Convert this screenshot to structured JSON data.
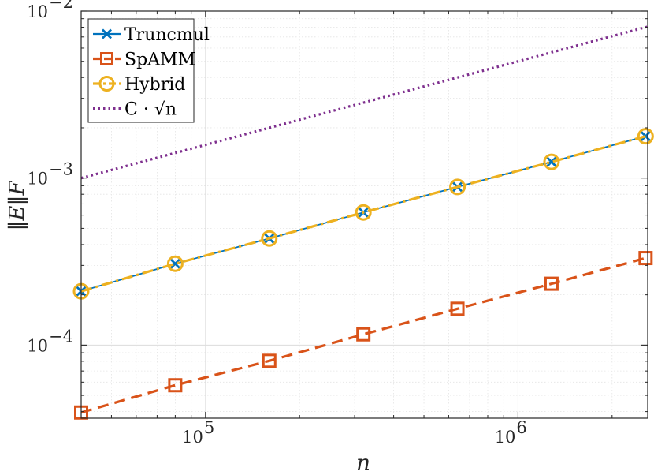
{
  "chart_data": {
    "type": "line",
    "xscale": "log",
    "yscale": "log",
    "xlim": [
      40000,
      2600000
    ],
    "ylim": [
      3.651e-05,
      0.01
    ],
    "grid": true,
    "xlabel": "n",
    "ylabel": "‖E‖F",
    "legend_position": "top-left",
    "x_ticks": [
      {
        "value": 100000,
        "base": "10",
        "exp": "5"
      },
      {
        "value": 1000000,
        "base": "10",
        "exp": "6"
      }
    ],
    "y_ticks": [
      {
        "value": 0.0001,
        "base": "10",
        "exp": "−4"
      },
      {
        "value": 0.001,
        "base": "10",
        "exp": "−3"
      },
      {
        "value": 0.01,
        "base": "10",
        "exp": "−2"
      }
    ],
    "series": [
      {
        "name": "Truncmul",
        "color": "#0072BD",
        "linestyle": "solid",
        "marker": "x",
        "x": [
          40000,
          80000,
          160000,
          320000,
          640000,
          1280000,
          2560000
        ],
        "y": [
          0.00021,
          0.000307,
          0.000435,
          0.000623,
          0.000885,
          0.00125,
          0.00178
        ]
      },
      {
        "name": "SpAMM",
        "color": "#D95319",
        "linestyle": "dashed",
        "marker": "square",
        "x": [
          40000,
          80000,
          160000,
          320000,
          640000,
          1280000,
          2560000
        ],
        "y": [
          3.95e-05,
          5.75e-05,
          8.05e-05,
          0.000116,
          0.000165,
          0.000233,
          0.000332
        ]
      },
      {
        "name": "Hybrid",
        "color": "#EDB120",
        "linestyle": "dashdot",
        "marker": "circle",
        "x": [
          40000,
          80000,
          160000,
          320000,
          640000,
          1280000,
          2560000
        ],
        "y": [
          0.00021,
          0.000307,
          0.000435,
          0.000623,
          0.000885,
          0.00125,
          0.00178
        ]
      },
      {
        "name": "C · √n",
        "color": "#7E2F8E",
        "linestyle": "dotted",
        "marker": "none",
        "x": [
          40000,
          2600000
        ],
        "y": [
          0.001,
          0.00806
        ]
      }
    ]
  }
}
